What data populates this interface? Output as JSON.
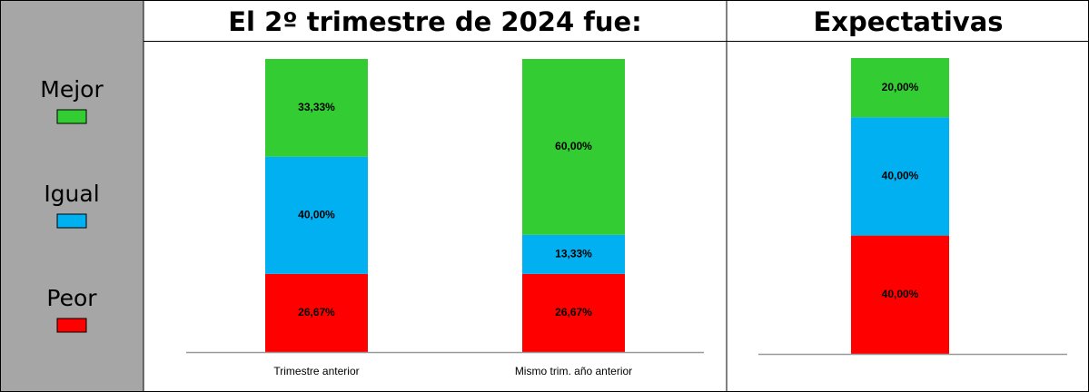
{
  "chart_data": [
    {
      "type": "stacked_bar",
      "title": "El 2º trimestre de 2024 fue:",
      "categories": [
        "Trimestre anterior",
        "Mismo trim. año anterior"
      ],
      "ylim": [
        0,
        100
      ],
      "series": [
        {
          "name": "Peor",
          "color": "#ff0000",
          "values": [
            26.67,
            26.67
          ],
          "value_labels": [
            "26,67%",
            "26,67%"
          ]
        },
        {
          "name": "Igual",
          "color": "#00b0f0",
          "values": [
            40,
            13.33
          ],
          "value_labels": [
            "40,00%",
            "13,33%"
          ]
        },
        {
          "name": "Mejor",
          "color": "#33cc33",
          "values": [
            33.33,
            60
          ],
          "value_labels": [
            "33,33%",
            "60,00%"
          ]
        }
      ]
    },
    {
      "type": "stacked_bar",
      "title": "Expectativas",
      "categories": [
        null
      ],
      "ylim": [
        0,
        100
      ],
      "series": [
        {
          "color": "#ff0000",
          "values": [
            40
          ],
          "value_labels": [
            "40,00%"
          ]
        },
        {
          "color": "#00b0f0",
          "values": [
            40
          ],
          "value_labels": [
            "40,00%"
          ]
        },
        {
          "color": "#33cc33",
          "values": [
            20
          ],
          "value_labels": [
            "20,00%"
          ]
        }
      ]
    }
  ]
}
